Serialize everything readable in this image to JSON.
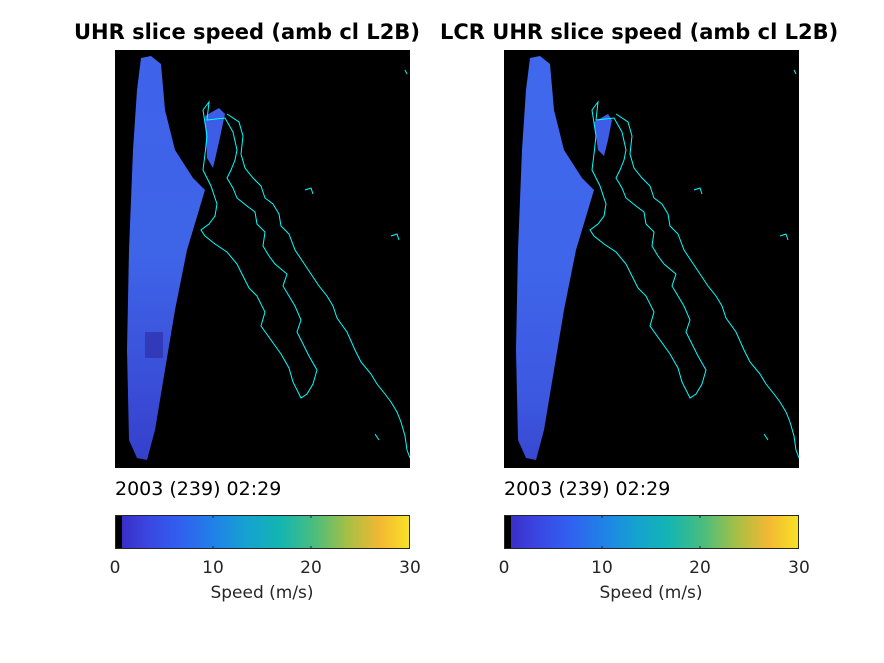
{
  "figure": {
    "panels": [
      {
        "title": "UHR slice speed (amb cl L2B)",
        "timestamp": "2003 (239) 02:29",
        "colorbar": {
          "ticks": [
            "0",
            "10",
            "20",
            "30"
          ],
          "label": "Speed (m/s)",
          "range": [
            0,
            30
          ],
          "colormap": "parula"
        }
      },
      {
        "title": "LCR UHR slice speed (amb cl L2B)",
        "timestamp": "2003 (239) 02:29",
        "colorbar": {
          "ticks": [
            "0",
            "10",
            "20",
            "30"
          ],
          "label": "Speed (m/s)",
          "range": [
            0,
            30
          ],
          "colormap": "parula"
        }
      }
    ],
    "colors": {
      "background": "#000000",
      "coastline": "#00ffff",
      "swath": "#3f62ea"
    }
  }
}
